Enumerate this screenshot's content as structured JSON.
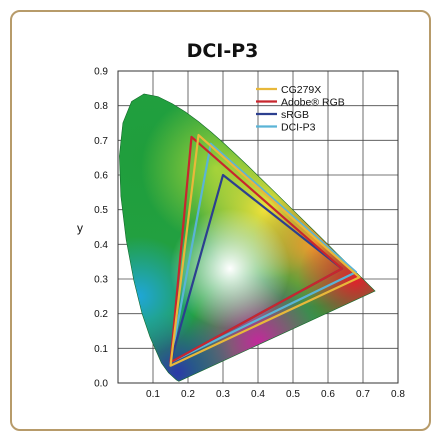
{
  "chart_data": {
    "type": "scatter",
    "title": "DCI-P3",
    "xlabel": "",
    "ylabel": "y",
    "xlim": [
      0,
      0.8
    ],
    "ylim": [
      0,
      0.9
    ],
    "x_ticks": [
      "0.1",
      "0.2",
      "0.3",
      "0.4",
      "0.5",
      "0.6",
      "0.7",
      "0.8"
    ],
    "y_ticks": [
      "0.0",
      "0.1",
      "0.2",
      "0.3",
      "0.4",
      "0.5",
      "0.6",
      "0.7",
      "0.8",
      "0.9"
    ],
    "grid": true,
    "legend_position": "top-right",
    "spectral_locus": [
      [
        0.1741,
        0.005
      ],
      [
        0.1738,
        0.0049
      ],
      [
        0.1666,
        0.0089
      ],
      [
        0.144,
        0.0297
      ],
      [
        0.1241,
        0.0578
      ],
      [
        0.0913,
        0.1327
      ],
      [
        0.0687,
        0.2007
      ],
      [
        0.0454,
        0.295
      ],
      [
        0.0235,
        0.4127
      ],
      [
        0.0082,
        0.5384
      ],
      [
        0.0039,
        0.6548
      ],
      [
        0.0139,
        0.7502
      ],
      [
        0.0389,
        0.812
      ],
      [
        0.0743,
        0.8338
      ],
      [
        0.1142,
        0.8262
      ],
      [
        0.1547,
        0.8059
      ],
      [
        0.1929,
        0.7816
      ],
      [
        0.2296,
        0.7543
      ],
      [
        0.2658,
        0.7243
      ],
      [
        0.3016,
        0.6923
      ],
      [
        0.3373,
        0.6589
      ],
      [
        0.3731,
        0.6245
      ],
      [
        0.4087,
        0.5896
      ],
      [
        0.4441,
        0.5547
      ],
      [
        0.4788,
        0.5202
      ],
      [
        0.5125,
        0.4866
      ],
      [
        0.5448,
        0.4544
      ],
      [
        0.5752,
        0.4242
      ],
      [
        0.6029,
        0.3965
      ],
      [
        0.627,
        0.3725
      ],
      [
        0.6482,
        0.3514
      ],
      [
        0.6658,
        0.334
      ],
      [
        0.6801,
        0.3197
      ],
      [
        0.6915,
        0.3083
      ],
      [
        0.7006,
        0.2993
      ],
      [
        0.7079,
        0.292
      ],
      [
        0.714,
        0.2859
      ],
      [
        0.7347,
        0.2653
      ]
    ],
    "series": [
      {
        "name": "CG279X",
        "color": "#e8b83a",
        "points": [
          [
            0.69,
            0.305
          ],
          [
            0.23,
            0.715
          ],
          [
            0.15,
            0.05
          ]
        ]
      },
      {
        "name": "Adobe® RGB",
        "color": "#c8262e",
        "points": [
          [
            0.64,
            0.33
          ],
          [
            0.21,
            0.71
          ],
          [
            0.15,
            0.06
          ]
        ]
      },
      {
        "name": "sRGB",
        "color": "#2c3f8f",
        "points": [
          [
            0.64,
            0.33
          ],
          [
            0.3,
            0.6
          ],
          [
            0.15,
            0.06
          ]
        ]
      },
      {
        "name": "DCI-P3",
        "color": "#5ab4d6",
        "points": [
          [
            0.68,
            0.32
          ],
          [
            0.265,
            0.69
          ],
          [
            0.15,
            0.06
          ]
        ]
      }
    ]
  }
}
